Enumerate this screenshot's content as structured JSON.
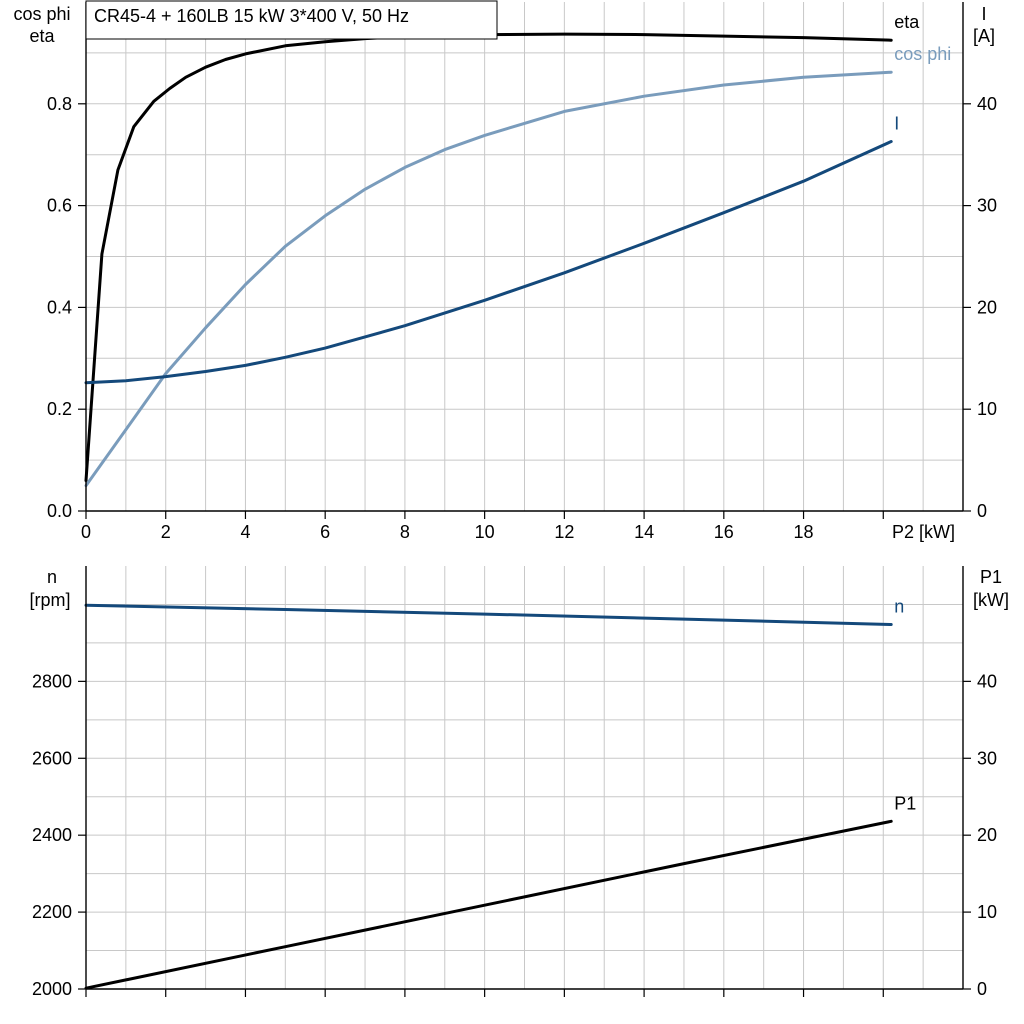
{
  "title": "CR45-4 + 160LB   15 kW   3*400 V, 50 Hz",
  "colors": {
    "black": "#000000",
    "light_blue": "#7a9cbc",
    "dark_blue": "#14497b",
    "grid": "#c8c8c8"
  },
  "chart_data": [
    {
      "type": "line",
      "xlabel": "P2 [kW]",
      "ylabel_left": [
        "cos phi",
        "eta"
      ],
      "ylabel_right": [
        "I",
        "[A]"
      ],
      "xlim": [
        0,
        22
      ],
      "ylim_left": [
        0,
        1.0
      ],
      "ylim_right": [
        0,
        50
      ],
      "x_ticks": [
        "0",
        "2",
        "4",
        "6",
        "8",
        "10",
        "12",
        "14",
        "16",
        "18"
      ],
      "y_ticks_left": [
        "0.0",
        "0.2",
        "0.4",
        "0.6",
        "0.8"
      ],
      "y_ticks_right": [
        "0",
        "10",
        "20",
        "30",
        "40"
      ],
      "grid": true,
      "series": [
        {
          "name": "eta",
          "axis": "left",
          "color": "#000000",
          "x": [
            0,
            0.4,
            0.8,
            1.2,
            1.7,
            2.1,
            2.5,
            3,
            3.5,
            4,
            5,
            6,
            7,
            8,
            10,
            12,
            14,
            16,
            18,
            20.2
          ],
          "y": [
            0.06,
            0.505,
            0.67,
            0.755,
            0.805,
            0.83,
            0.852,
            0.872,
            0.887,
            0.898,
            0.914,
            0.922,
            0.928,
            0.932,
            0.936,
            0.937,
            0.936,
            0.933,
            0.93,
            0.925
          ]
        },
        {
          "name": "cos phi",
          "axis": "left",
          "color": "#7a9cbc",
          "x": [
            0,
            1,
            2,
            3,
            4,
            5,
            6,
            7,
            8,
            9,
            10,
            12,
            14,
            16,
            18,
            20.2
          ],
          "y": [
            0.05,
            0.16,
            0.27,
            0.36,
            0.445,
            0.52,
            0.58,
            0.632,
            0.675,
            0.71,
            0.738,
            0.785,
            0.815,
            0.837,
            0.852,
            0.862
          ]
        },
        {
          "name": "I",
          "axis": "right",
          "color": "#14497b",
          "x": [
            0,
            1,
            2,
            3,
            4,
            5,
            6,
            8,
            10,
            12,
            14,
            16,
            18,
            20.2
          ],
          "y": [
            12.6,
            12.8,
            13.2,
            13.7,
            14.3,
            15.1,
            16.0,
            18.2,
            20.7,
            23.4,
            26.3,
            29.3,
            32.4,
            36.3
          ]
        }
      ]
    },
    {
      "type": "line",
      "ylabel_left": [
        "n",
        "[rpm]"
      ],
      "ylabel_right": [
        "P1",
        "[kW]"
      ],
      "xlim": [
        0,
        22
      ],
      "ylim_left": [
        2000,
        3100
      ],
      "ylim_right": [
        0,
        55
      ],
      "y_ticks_left": [
        "2000",
        "2200",
        "2400",
        "2600",
        "2800"
      ],
      "y_ticks_right": [
        "0",
        "10",
        "20",
        "30",
        "40"
      ],
      "grid": true,
      "series": [
        {
          "name": "n",
          "axis": "left",
          "color": "#14497b",
          "x": [
            0,
            5,
            10,
            15,
            20.2
          ],
          "y": [
            2998,
            2987,
            2975,
            2962,
            2948
          ]
        },
        {
          "name": "P1",
          "axis": "right",
          "color": "#000000",
          "x": [
            0,
            5,
            10,
            15,
            20.2
          ],
          "y": [
            0.1,
            5.5,
            10.9,
            16.3,
            21.8
          ]
        }
      ]
    }
  ]
}
